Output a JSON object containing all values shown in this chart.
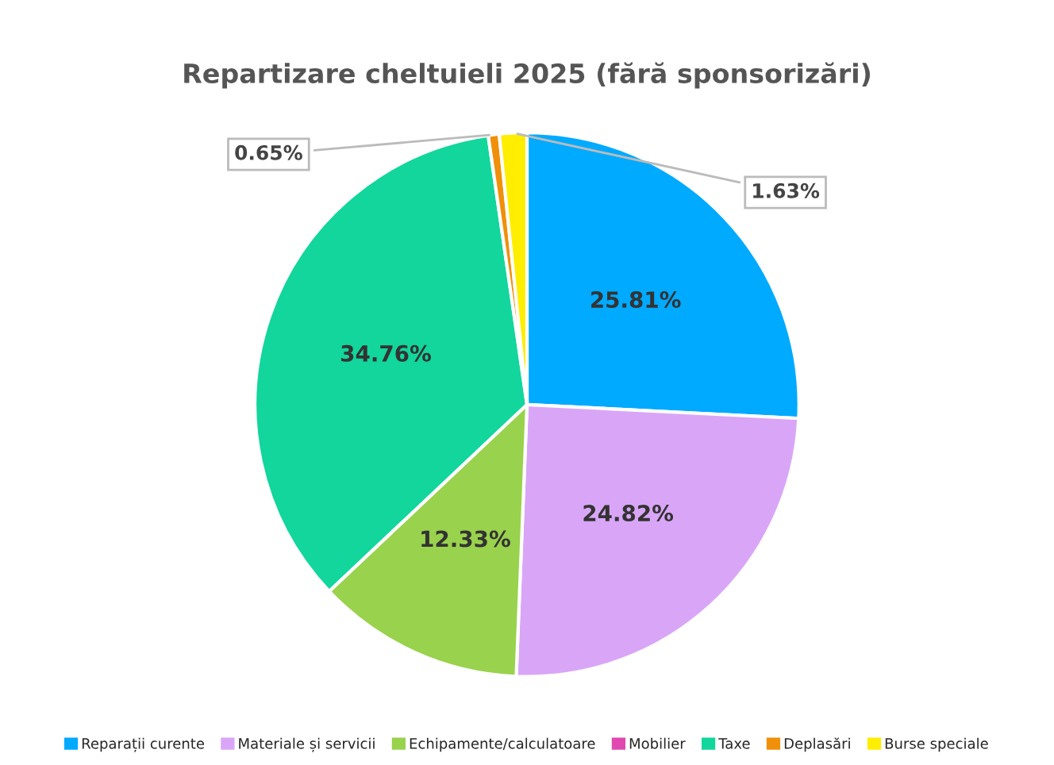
{
  "chart_data": {
    "type": "pie",
    "title": "Repartizare cheltuieli 2025 (fără sponsorizări)",
    "categories": [
      "Reparații curente",
      "Materiale și servicii",
      "Echipamente/calculatoare",
      "Mobilier",
      "Taxe",
      "Deplasări",
      "Burse speciale"
    ],
    "values": [
      25.81,
      24.82,
      12.33,
      0,
      34.76,
      0.65,
      1.63
    ],
    "value_labels": [
      "25.81%",
      "24.82%",
      "12.33%",
      null,
      "34.76%",
      "0.65%",
      "1.63%"
    ],
    "colors": [
      "#00aaff",
      "#d9a6f7",
      "#99d24c",
      "#e048b0",
      "#12d69c",
      "#f0900a",
      "#ffee00"
    ],
    "legend": "bottom"
  }
}
